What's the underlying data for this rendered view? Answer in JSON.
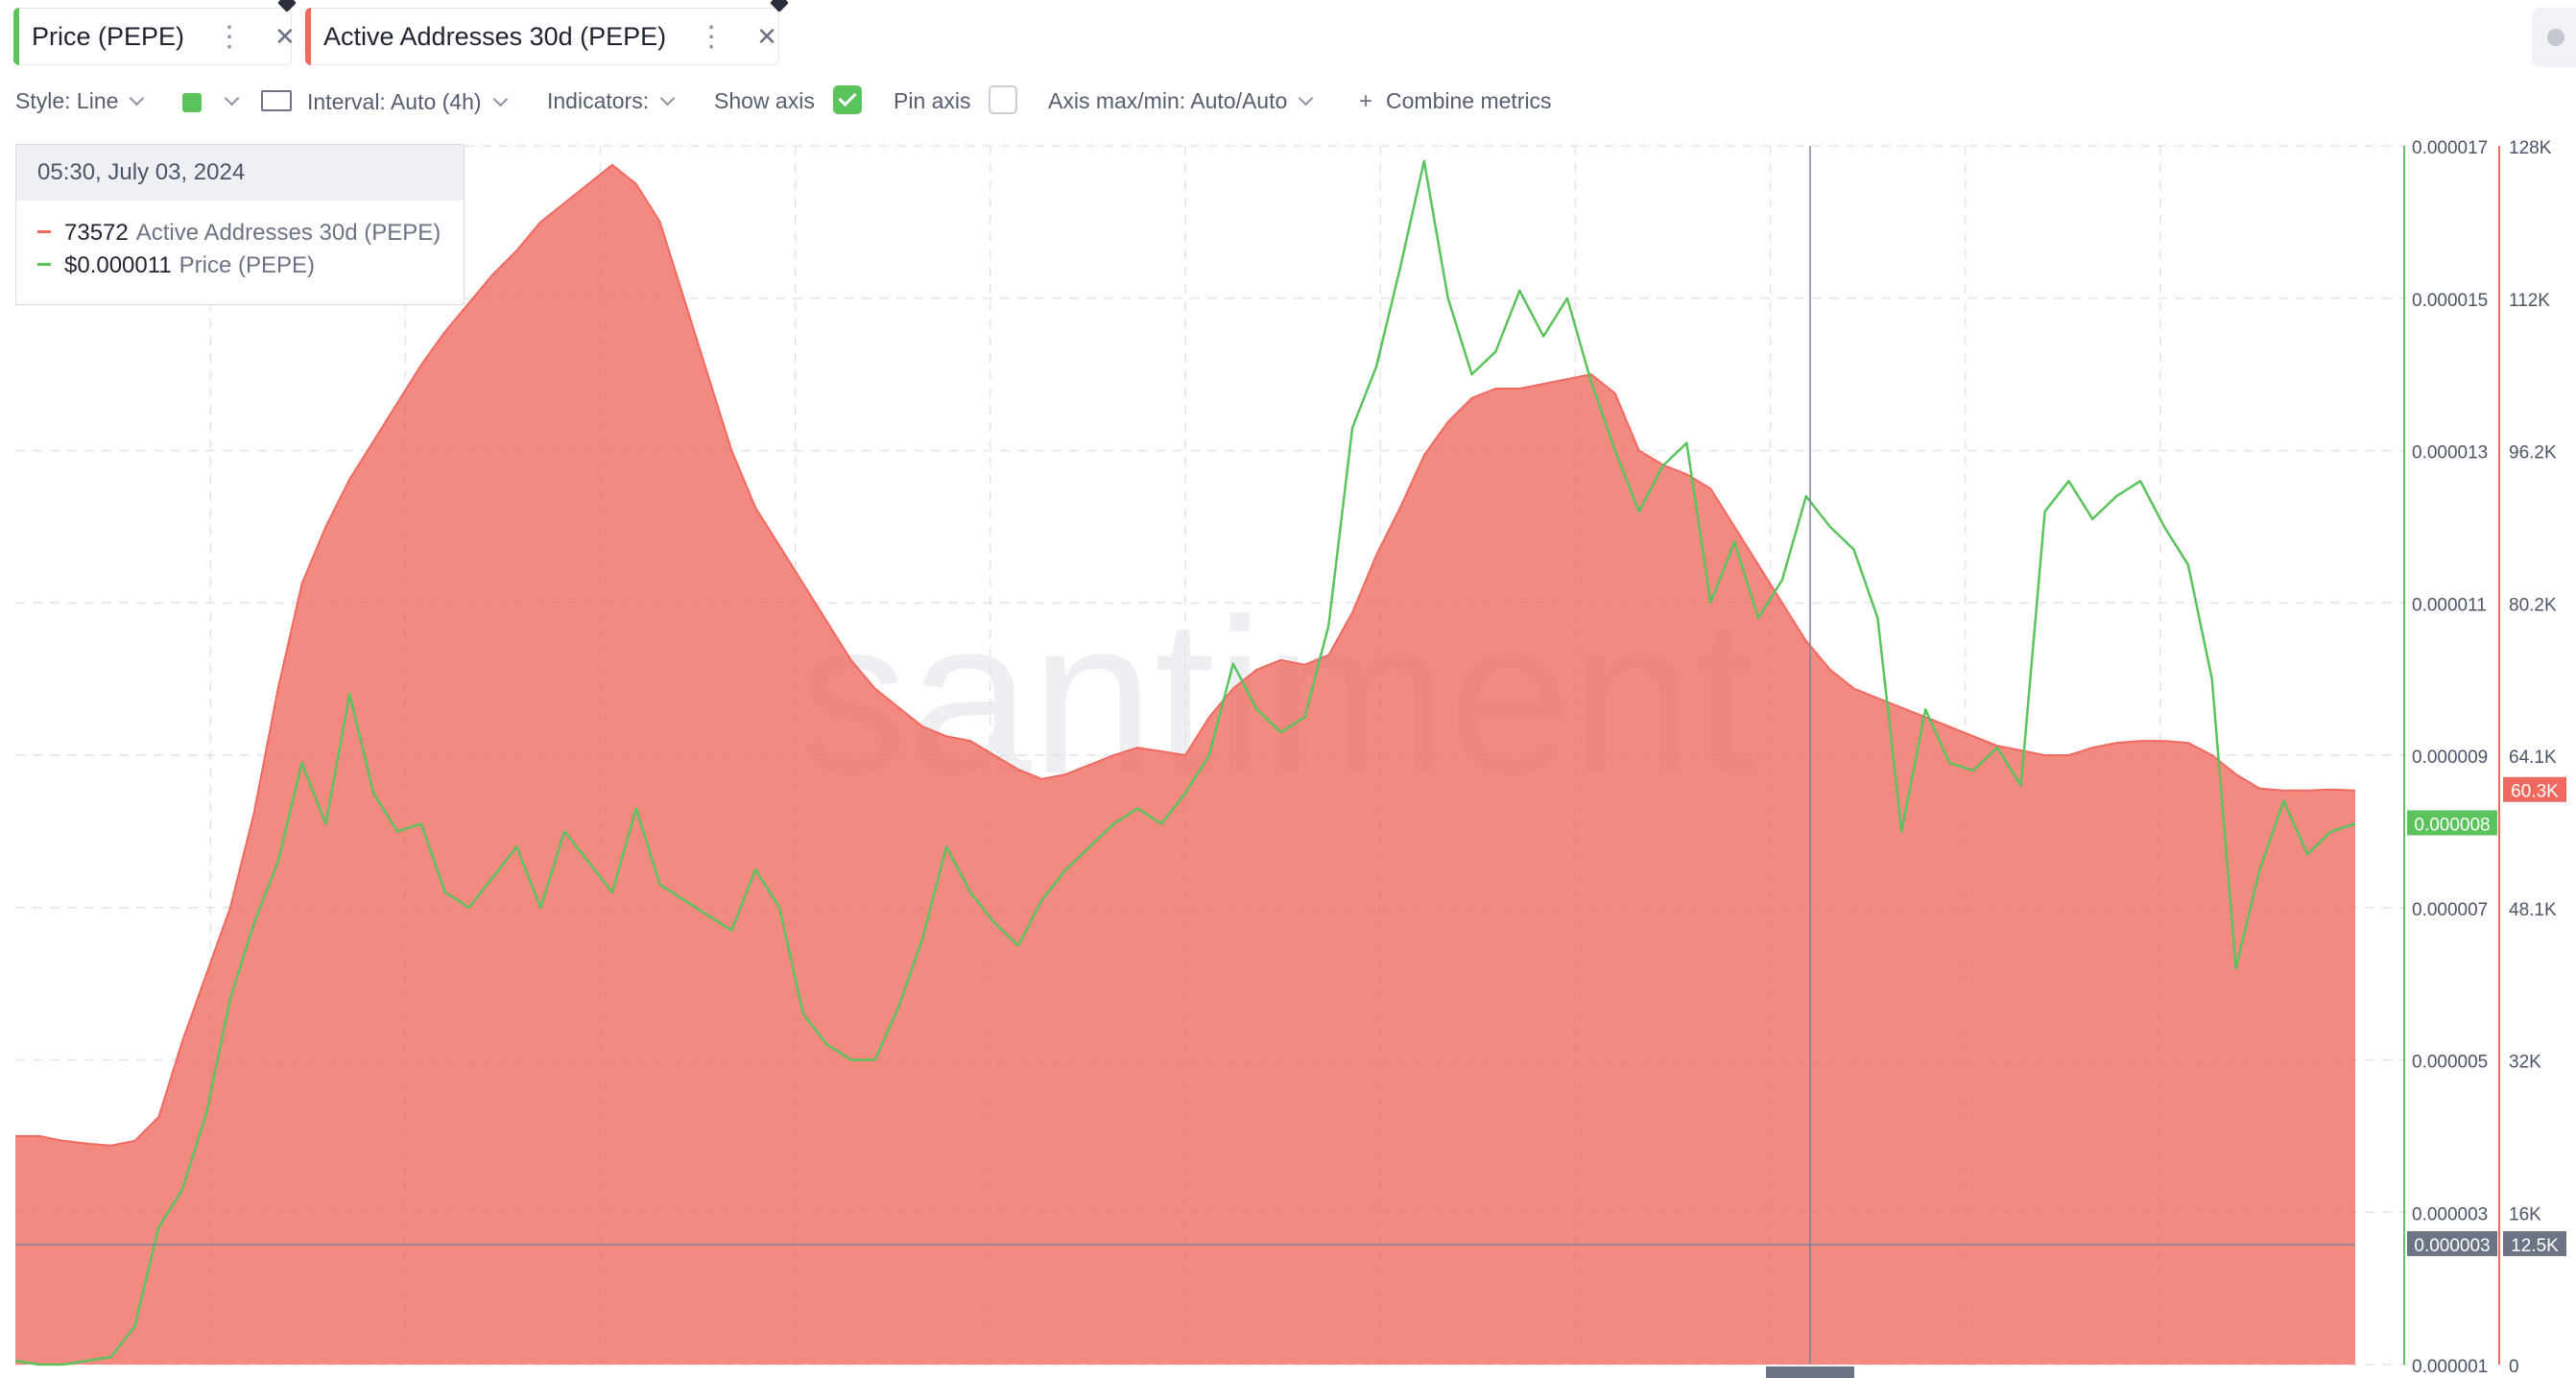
{
  "metrics": [
    {
      "label": "Price (PEPE)",
      "color": "#5ac35c"
    },
    {
      "label": "Active Addresses 30d (PEPE)",
      "color": "#f0695f"
    }
  ],
  "toolbar": {
    "style": "Style: Line",
    "interval": "Interval: Auto (4h)",
    "indicators": "Indicators:",
    "show_axis": "Show axis",
    "show_axis_checked": true,
    "pin_axis": "Pin axis",
    "pin_axis_checked": false,
    "axis_maxmin": "Axis max/min: Auto/Auto",
    "combine": "Combine metrics"
  },
  "tooltip": {
    "date": "05:30, July 03, 2024",
    "rows": [
      {
        "value": "73572",
        "label": "Active Addresses 30d (PEPE)",
        "color": "#f0695f"
      },
      {
        "value": "$0.000011",
        "label": "Price (PEPE)",
        "color": "#5ac35c"
      }
    ]
  },
  "watermark": "santiment",
  "chart_data": {
    "type": "line",
    "price_axis": {
      "ticks": [
        "0.000017",
        "0.000015",
        "0.000013",
        "0.000011",
        "0.000009",
        "0.000007",
        "0.000005",
        "0.000003",
        "0.000001"
      ],
      "range": [
        1e-06,
        1.7e-05
      ],
      "current_label": "0.000008",
      "crosshair_label": "0.000003",
      "color": "#5ac35c"
    },
    "addresses_axis": {
      "ticks": [
        "128K",
        "112K",
        "96.2K",
        "80.2K",
        "64.1K",
        "48.1K",
        "32K",
        "16K",
        "0"
      ],
      "range": [
        0,
        128000
      ],
      "current_label": "60.3K",
      "crosshair_label": "12.5K",
      "color": "#f0695f"
    },
    "series": [
      {
        "name": "Active Addresses 30d (PEPE)",
        "kind": "area",
        "color": "#f0695f",
        "values": [
          24000,
          24000,
          23500,
          23200,
          23000,
          23500,
          26000,
          34000,
          41000,
          48000,
          58000,
          71000,
          82000,
          88000,
          93000,
          97000,
          101000,
          105000,
          108500,
          111500,
          114500,
          117000,
          120000,
          122000,
          124000,
          126000,
          124000,
          120000,
          112000,
          104000,
          96000,
          90000,
          86000,
          82000,
          78000,
          74000,
          71000,
          69000,
          67000,
          66000,
          65500,
          64000,
          62500,
          61500,
          62000,
          63000,
          64000,
          64800,
          64400,
          64000,
          68000,
          71000,
          73000,
          74000,
          73500,
          74500,
          79000,
          85000,
          90000,
          95500,
          99000,
          101500,
          102500,
          102500,
          103000,
          103500,
          104000,
          102000,
          96000,
          94500,
          93500,
          92000,
          88000,
          84000,
          80000,
          76000,
          73000,
          71000,
          70000,
          69000,
          68000,
          67000,
          66000,
          65000,
          64500,
          64000,
          64000,
          64800,
          65300,
          65500,
          65500,
          65300,
          64000,
          62000,
          60500,
          60300,
          60300,
          60400,
          60300
        ]
      },
      {
        "name": "Price (PEPE)",
        "kind": "line",
        "color": "#5ac35c",
        "values": [
          1.05e-06,
          1e-06,
          1e-06,
          1.05e-06,
          1.1e-06,
          1.5e-06,
          2.8e-06,
          3.3e-06,
          4.3e-06,
          5.8e-06,
          6.8e-06,
          7.6e-06,
          8.9e-06,
          8.1e-06,
          9.8e-06,
          8.5e-06,
          8e-06,
          8.1e-06,
          7.2e-06,
          7e-06,
          7.4e-06,
          7.8e-06,
          7e-06,
          8e-06,
          7.6e-06,
          7.2e-06,
          8.3e-06,
          7.3e-06,
          7.1e-06,
          6.9e-06,
          6.7e-06,
          7.5e-06,
          7e-06,
          5.6e-06,
          5.2e-06,
          5e-06,
          5e-06,
          5.7e-06,
          6.6e-06,
          7.8e-06,
          7.2e-06,
          6.8e-06,
          6.5e-06,
          7.1e-06,
          7.5e-06,
          7.8e-06,
          8.1e-06,
          8.3e-06,
          8.1e-06,
          8.5e-06,
          9e-06,
          1.02e-05,
          9.6e-06,
          9.3e-06,
          9.5e-06,
          1.07e-05,
          1.33e-05,
          1.41e-05,
          1.54e-05,
          1.68e-05,
          1.5e-05,
          1.4e-05,
          1.43e-05,
          1.51e-05,
          1.45e-05,
          1.5e-05,
          1.39e-05,
          1.3e-05,
          1.22e-05,
          1.28e-05,
          1.31e-05,
          1.1e-05,
          1.18e-05,
          1.08e-05,
          1.13e-05,
          1.24e-05,
          1.2e-05,
          1.17e-05,
          1.08e-05,
          8e-06,
          9.6e-06,
          8.9e-06,
          8.8e-06,
          9.1e-06,
          8.6e-06,
          1.22e-05,
          1.26e-05,
          1.21e-05,
          1.24e-05,
          1.26e-05,
          1.2e-05,
          1.15e-05,
          1e-05,
          6.2e-06,
          7.5e-06,
          8.4e-06,
          7.7e-06,
          8e-06,
          8.1e-06
        ]
      }
    ],
    "grid": true,
    "legend": "top-left tooltip"
  }
}
